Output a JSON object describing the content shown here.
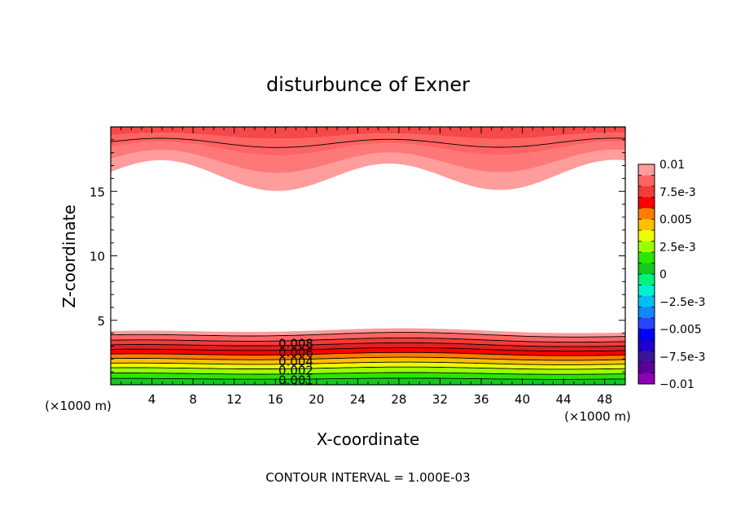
{
  "chart_data": {
    "type": "contour",
    "title": "disturbunce of Exner",
    "xlabel": "X-coordinate",
    "ylabel": "Z-coordinate",
    "x_unit_left": "(×1000 m)",
    "x_unit_right": "(×1000 m)",
    "xlim": [
      0,
      50
    ],
    "ylim": [
      0,
      20
    ],
    "x_ticks": [
      "4",
      "8",
      "12",
      "16",
      "20",
      "24",
      "28",
      "32",
      "36",
      "40",
      "44",
      "48"
    ],
    "y_ticks": [
      "5",
      "10",
      "15"
    ],
    "footer": "CONTOUR INTERVAL = 1.000E-03",
    "contour_interval": 0.001,
    "contour_labels": [
      "0.008",
      "0.006",
      "0.004",
      "0.002",
      "0.001"
    ],
    "colorbar": {
      "range": [
        -0.01,
        0.01
      ],
      "labels": [
        "0.01",
        "7.5e-3",
        "0.005",
        "2.5e-3",
        "0",
        "−2.5e-3",
        "−0.005",
        "−7.5e-3",
        "−0.01"
      ],
      "colors": [
        "#ff9c9c",
        "#ff6464",
        "#f53a3a",
        "#ff0000",
        "#ff7c00",
        "#ffbf00",
        "#eaff00",
        "#9cff00",
        "#29e600",
        "#14c81c",
        "#00f084",
        "#00f0d0",
        "#00bdf2",
        "#1287ff",
        "#2846ff",
        "#0000ff",
        "#1e00c8",
        "#3c1496",
        "#5a0096",
        "#8c00b4"
      ]
    }
  }
}
